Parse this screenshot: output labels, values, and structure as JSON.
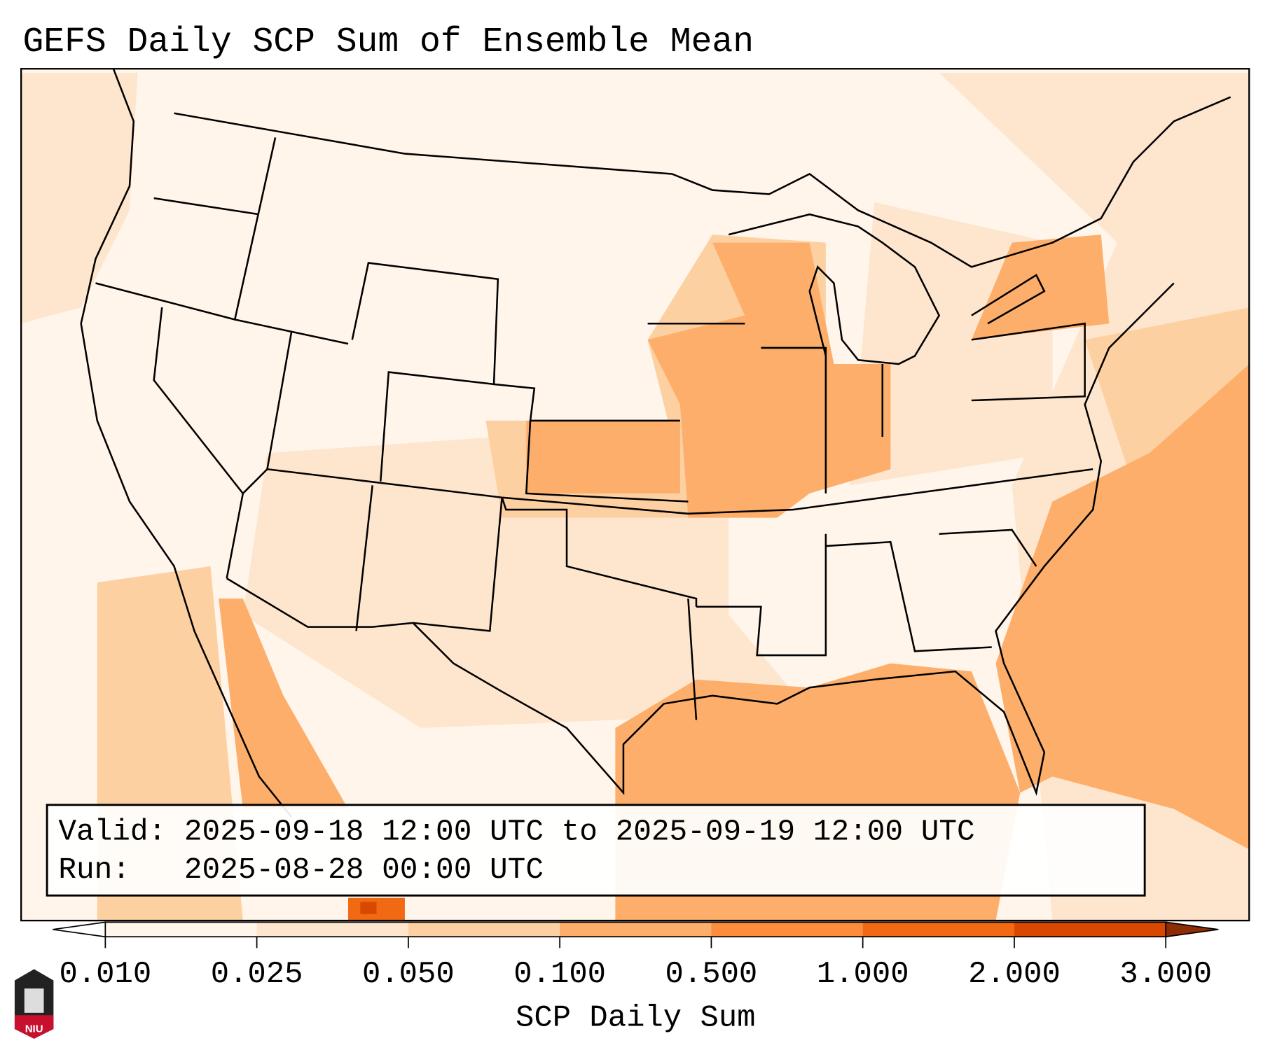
{
  "title": "GEFS Daily SCP Sum of Ensemble Mean",
  "info": {
    "valid_line": "Valid: 2025-09-18 12:00 UTC to 2025-09-19 12:00 UTC",
    "run_line": "Run:   2025-08-28 00:00 UTC"
  },
  "colorbar": {
    "label": "SCP Daily Sum",
    "ticks": [
      "0.010",
      "0.025",
      "0.050",
      "0.100",
      "0.500",
      "1.000",
      "2.000",
      "3.000"
    ],
    "under_color": "#ffffff",
    "over_color": "#8c2d04",
    "colors": [
      "#fff5eb",
      "#fee6ce",
      "#fdd0a2",
      "#fdae6b",
      "#fd8d3c",
      "#f16913",
      "#d94801"
    ]
  },
  "logo": {
    "text": "NIU",
    "color": "#c8102e"
  }
}
